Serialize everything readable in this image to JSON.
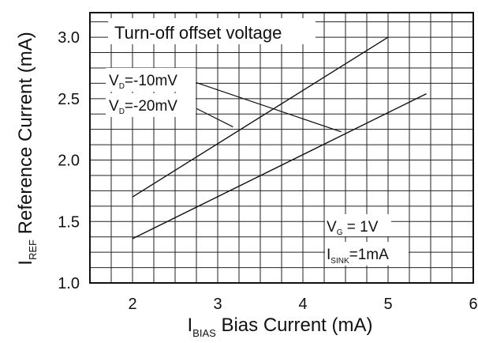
{
  "chart_data": {
    "type": "line",
    "title": "Turn-off offset voltage",
    "xlabel": {
      "main": "I",
      "sub": "BIAS",
      "rest": " Bias Current (mA)"
    },
    "ylabel": {
      "main": "I",
      "sub": "REF",
      "rest": " Reference Current (mA)"
    },
    "xlim": [
      1.5,
      6
    ],
    "ylim": [
      1.0,
      3.2
    ],
    "x_ticks": [
      {
        "v": 2,
        "label": "2"
      },
      {
        "v": 3,
        "label": "3"
      },
      {
        "v": 4,
        "label": "4"
      },
      {
        "v": 5,
        "label": "5"
      },
      {
        "v": 6,
        "label": "6"
      }
    ],
    "y_ticks": [
      {
        "v": 1.0,
        "label": "1.0"
      },
      {
        "v": 1.5,
        "label": "1.5"
      },
      {
        "v": 2.0,
        "label": "2.0"
      },
      {
        "v": 2.5,
        "label": "2.5"
      },
      {
        "v": 3.0,
        "label": "3.0"
      }
    ],
    "grid_minor_x": 0.25,
    "grid_minor_y": 0.125,
    "grid": true,
    "series": [
      {
        "name": "VD=-10mV",
        "x": [
          2,
          5
        ],
        "y": [
          1.7,
          3.0
        ]
      },
      {
        "name": "VD=-20mV",
        "x": [
          2,
          5.45
        ],
        "y": [
          1.36,
          2.54
        ]
      }
    ],
    "annotations": {
      "vd10": {
        "main": "V",
        "sub": "D",
        "rest": "=-10mV"
      },
      "vd20": {
        "main": "V",
        "sub": "D",
        "rest": "=-20mV"
      },
      "vg": {
        "main": "V",
        "sub": "G",
        "rest": " = 1V"
      },
      "isink": {
        "main": "I",
        "sub": "SINK",
        "rest": "=1mA"
      }
    },
    "leader_lines": [
      {
        "from": [
          2.75,
          2.63
        ],
        "to": [
          4.45,
          2.23
        ]
      },
      {
        "from": [
          2.75,
          2.42
        ],
        "to": [
          3.18,
          2.27
        ]
      }
    ]
  }
}
